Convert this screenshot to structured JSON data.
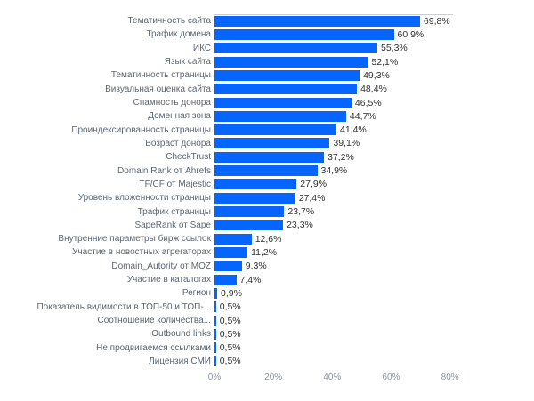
{
  "chart_data": {
    "type": "bar",
    "orientation": "horizontal",
    "title": "",
    "xlabel": "",
    "ylabel": "",
    "legend": "none",
    "grid": "top-border-only",
    "xlim": [
      0,
      81
    ],
    "categories": [
      "Тематичность сайта",
      "Трафик домена",
      "ИКС",
      "Язык сайта",
      "Тематичность страницы",
      "Визуальная оценка сайта",
      "Спамность донора",
      "Доменная зона",
      "Проиндексированность страницы",
      "Возраст донора",
      "CheckTrust",
      "Domain Rank от Ahrefs",
      "TF/CF от Majestic",
      "Уровень вложенности страницы",
      "Трафик страницы",
      "SapeRank от Sape",
      "Внутренние параметры бирж ссылок",
      "Участие в новостных агрегаторах",
      "Domain_Autority от MOZ",
      "Участие в каталогах",
      "Регион",
      "Показатель видимости в ТОП-50 и ТОП-...",
      "Соотношение количества...",
      "Outbound links",
      "Не продвигаемся ссылками",
      "Лицензия СМИ"
    ],
    "values": [
      69.8,
      60.9,
      55.3,
      52.1,
      49.3,
      48.4,
      46.5,
      44.7,
      41.4,
      39.1,
      37.2,
      34.9,
      27.9,
      27.4,
      23.7,
      23.3,
      12.6,
      11.2,
      9.3,
      7.4,
      0.9,
      0.5,
      0.5,
      0.5,
      0.5,
      0.5
    ],
    "display_values": [
      "69,8%",
      "60,9%",
      "55,3%",
      "52,1%",
      "49,3%",
      "48,4%",
      "46,5%",
      "44,7%",
      "41,4%",
      "39,1%",
      "37,2%",
      "34,9%",
      "27,9%",
      "27,4%",
      "23,7%",
      "23,3%",
      "12,6%",
      "11,2%",
      "9,3%",
      "7,4%",
      "0,9%",
      "0,5%",
      "0,5%",
      "0,5%",
      "0,5%",
      "0,5%"
    ],
    "x_ticks": [
      "0%",
      "20%",
      "40%",
      "60%",
      "80%"
    ],
    "x_tick_values": [
      0,
      20,
      40,
      60,
      80
    ],
    "colors": {
      "bar": "#0565fe",
      "category_label": "#5b6672",
      "value_label": "#303030",
      "axis_tick_label": "#8b95a1",
      "plot_border": "#c9ccd1",
      "background": "#ffffff"
    }
  }
}
